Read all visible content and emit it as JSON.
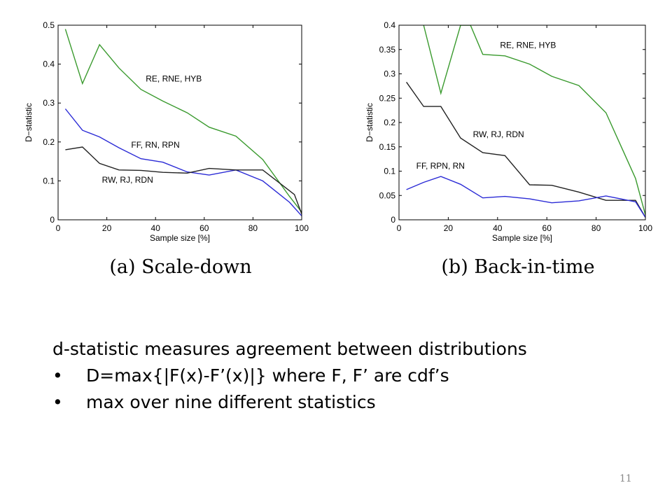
{
  "chart_data": [
    {
      "type": "line",
      "title": "",
      "xlabel": "Sample size [%]",
      "ylabel": "D−statistic",
      "xlim": [
        0,
        100
      ],
      "ylim": [
        0,
        0.5
      ],
      "xticks": [
        "0",
        "20",
        "40",
        "60",
        "80",
        "100"
      ],
      "yticks": [
        "0",
        "0.1",
        "0.2",
        "0.3",
        "0.4",
        "0.5"
      ],
      "grid": false,
      "caption": "(a) Scale-down",
      "series": [
        {
          "color": "#3a9a2e",
          "x": [
            3,
            10,
            17,
            25,
            34,
            43,
            53,
            62,
            73,
            84,
            95,
            100
          ],
          "y": [
            0.49,
            0.35,
            0.45,
            0.39,
            0.335,
            0.305,
            0.275,
            0.238,
            0.215,
            0.155,
            0.06,
            0.02
          ]
        },
        {
          "color": "#2b2bd6",
          "x": [
            3,
            10,
            17,
            25,
            34,
            43,
            53,
            62,
            73,
            84,
            95,
            100
          ],
          "y": [
            0.285,
            0.23,
            0.213,
            0.185,
            0.157,
            0.148,
            0.123,
            0.115,
            0.128,
            0.1,
            0.045,
            0.01
          ]
        },
        {
          "color": "#222222",
          "x": [
            3,
            10,
            17,
            25,
            34,
            43,
            53,
            62,
            73,
            84,
            97,
            100
          ],
          "y": [
            0.18,
            0.187,
            0.145,
            0.128,
            0.127,
            0.122,
            0.12,
            0.132,
            0.128,
            0.128,
            0.065,
            0.015
          ]
        }
      ],
      "annotations": [
        {
          "text": "RE, RNE, HYB",
          "x": 36,
          "y": 0.355
        },
        {
          "text": "FF, RN, RPN",
          "x": 30,
          "y": 0.185
        },
        {
          "text": "RW, RJ, RDN",
          "x": 18,
          "y": 0.095
        }
      ]
    },
    {
      "type": "line",
      "title": "",
      "xlabel": "Sample size [%]",
      "ylabel": "D−statistic",
      "xlim": [
        0,
        100
      ],
      "ylim": [
        0,
        0.4
      ],
      "xticks": [
        "0",
        "20",
        "40",
        "60",
        "80",
        "100"
      ],
      "yticks": [
        "0",
        "0.05",
        "0.1",
        "0.15",
        "0.2",
        "0.25",
        "0.3",
        "0.35",
        "0.4"
      ],
      "grid": false,
      "caption": "(b) Back-in-time",
      "series": [
        {
          "color": "#3a9a2e",
          "x": [
            10,
            17,
            25,
            27,
            29,
            34,
            43,
            53,
            62,
            73,
            84,
            96,
            100
          ],
          "y": [
            0.4,
            0.26,
            0.4,
            0.4,
            0.4,
            0.34,
            0.337,
            0.32,
            0.295,
            0.276,
            0.22,
            0.085,
            0.01
          ]
        },
        {
          "color": "#222222",
          "x": [
            3,
            10,
            17,
            25,
            34,
            43,
            53,
            62,
            73,
            84,
            96,
            100
          ],
          "y": [
            0.283,
            0.233,
            0.233,
            0.168,
            0.138,
            0.132,
            0.072,
            0.071,
            0.057,
            0.04,
            0.04,
            0.005
          ]
        },
        {
          "color": "#2b2bd6",
          "x": [
            3,
            10,
            17,
            25,
            34,
            43,
            53,
            62,
            73,
            84,
            96,
            100
          ],
          "y": [
            0.062,
            0.077,
            0.089,
            0.073,
            0.045,
            0.048,
            0.043,
            0.035,
            0.039,
            0.049,
            0.037,
            0.005
          ]
        }
      ],
      "annotations": [
        {
          "text": "RE, RNE, HYB",
          "x": 41,
          "y": 0.353
        },
        {
          "text": "RW, RJ, RDN",
          "x": 30,
          "y": 0.17
        },
        {
          "text": "FF, RPN, RN",
          "x": 7,
          "y": 0.105
        }
      ]
    }
  ],
  "text": {
    "intro": "d-statistic  measures agreement between distributions",
    "bullets": [
      "D=max{|F(x)-F’(x)|} where F, F’ are cdf’s",
      "max over nine different statistics"
    ],
    "bullet_char": "•"
  },
  "slide_number": "11"
}
